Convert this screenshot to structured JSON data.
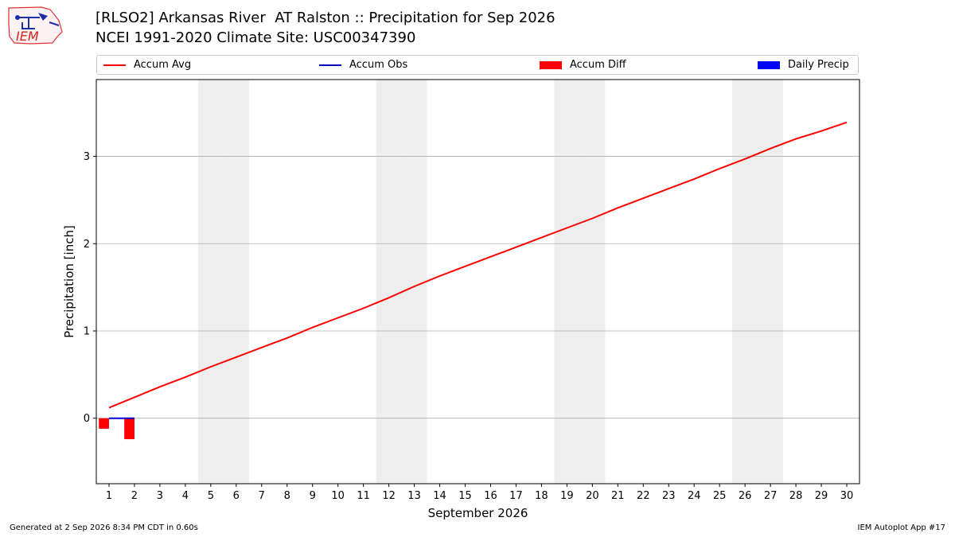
{
  "title_line1": "[RLSO2] Arkansas River  AT Ralston :: Precipitation for Sep 2026",
  "title_line2": "NCEI 1991-2020 Climate Site: USC00347390",
  "logo_text": "IEM",
  "footer_left": "Generated at 2 Sep 2026 8:34 PM CDT in 0.60s",
  "footer_right": "IEM Autoplot App #17",
  "colors": {
    "accum_avg": "#ff0000",
    "accum_obs": "#0000cc",
    "accum_diff": "#ff0000",
    "daily_precip": "#0000ff",
    "weekend_shade": "#eeeeee",
    "grid": "#b0b0b0"
  },
  "chart_data": {
    "type": "line",
    "xlabel": "September 2026",
    "ylabel": "Precipitation [inch]",
    "xlim": [
      0.5,
      30.5
    ],
    "ylim": [
      -0.75,
      3.88
    ],
    "y_ticks": [
      0,
      1,
      2,
      3
    ],
    "grid": "horizontal",
    "legend_position": "top",
    "x": [
      1,
      2,
      3,
      4,
      5,
      6,
      7,
      8,
      9,
      10,
      11,
      12,
      13,
      14,
      15,
      16,
      17,
      18,
      19,
      20,
      21,
      22,
      23,
      24,
      25,
      26,
      27,
      28,
      29,
      30
    ],
    "weekend_days": [
      5,
      6,
      12,
      13,
      19,
      20,
      26,
      27
    ],
    "series": [
      {
        "name": "Accum Avg",
        "kind": "line",
        "x": [
          1,
          2,
          3,
          4,
          5,
          6,
          7,
          8,
          9,
          10,
          11,
          12,
          13,
          14,
          15,
          16,
          17,
          18,
          19,
          20,
          21,
          22,
          23,
          24,
          25,
          26,
          27,
          28,
          29,
          30
        ],
        "values": [
          0.12,
          0.24,
          0.36,
          0.47,
          0.59,
          0.7,
          0.81,
          0.92,
          1.04,
          1.15,
          1.26,
          1.38,
          1.51,
          1.63,
          1.74,
          1.85,
          1.96,
          2.07,
          2.18,
          2.29,
          2.41,
          2.52,
          2.63,
          2.74,
          2.86,
          2.97,
          3.09,
          3.2,
          3.29,
          3.39
        ]
      },
      {
        "name": "Accum Obs",
        "kind": "line",
        "x": [
          1,
          2
        ],
        "values": [
          0.0,
          0.0
        ]
      },
      {
        "name": "Accum Diff",
        "kind": "bar",
        "x": [
          1,
          2
        ],
        "values": [
          -0.12,
          -0.24
        ]
      },
      {
        "name": "Daily Precip",
        "kind": "bar",
        "x": [
          1,
          2
        ],
        "values": [
          0.0,
          0.0
        ]
      }
    ]
  }
}
